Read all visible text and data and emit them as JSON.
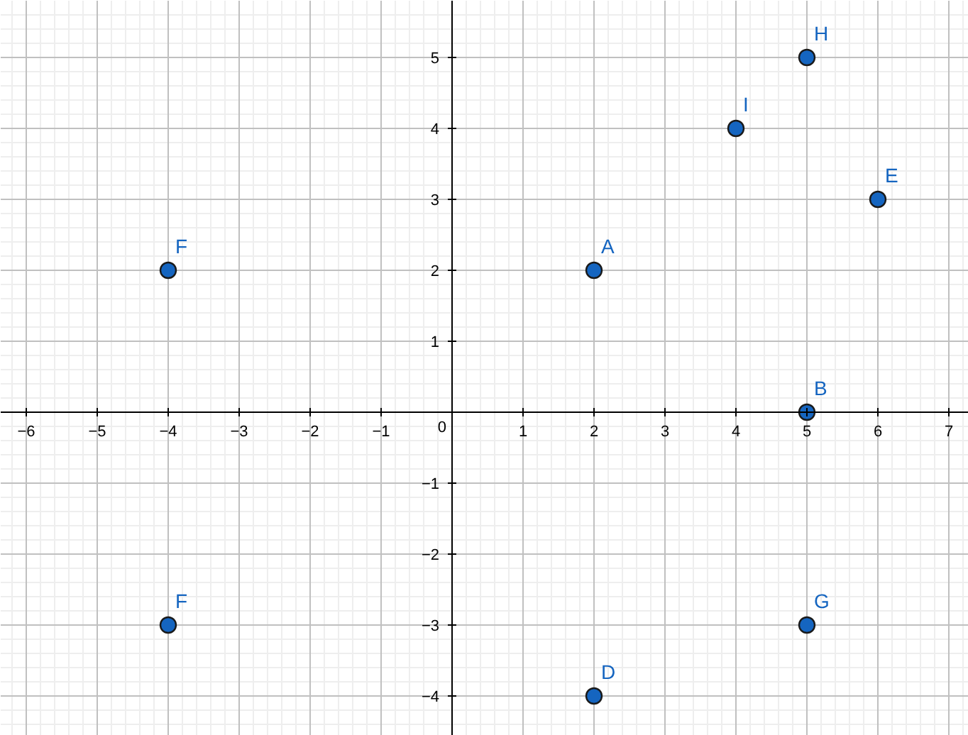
{
  "chart_data": {
    "type": "scatter",
    "x": [
      2,
      5,
      2,
      6,
      -4,
      -4,
      5,
      5,
      4
    ],
    "values": [
      2,
      0,
      -4,
      3,
      2,
      -3,
      -3,
      5,
      4
    ],
    "color": "#1565c0",
    "marker": "circle",
    "grid": true,
    "xlim": [
      -6.36,
      7.28
    ],
    "ylim": [
      -4.56,
      5.8
    ],
    "xticks": [
      {
        "value": -6,
        "label": "−6"
      },
      {
        "value": -5,
        "label": "−5"
      },
      {
        "value": -4,
        "label": "−4"
      },
      {
        "value": -3,
        "label": "−3"
      },
      {
        "value": -2,
        "label": "−2"
      },
      {
        "value": -1,
        "label": "−1"
      },
      0,
      1,
      2,
      3,
      4,
      5,
      6,
      7
    ],
    "yticks": [
      {
        "value": -4,
        "label": "−4"
      },
      {
        "value": -3,
        "label": "−3"
      },
      {
        "value": -2,
        "label": "−2"
      },
      {
        "value": -1,
        "label": "−1"
      },
      1,
      2,
      3,
      4,
      5
    ],
    "annotations": [
      {
        "text": "A",
        "x": 2,
        "y": 2
      },
      {
        "text": "B",
        "x": 5,
        "y": 0
      },
      {
        "text": "D",
        "x": 2,
        "y": -4
      },
      {
        "text": "E",
        "x": 6,
        "y": 3
      },
      {
        "text": "F",
        "x": -4,
        "y": 2
      },
      {
        "text": "F",
        "x": -4,
        "y": -3
      },
      {
        "text": "G",
        "x": 5,
        "y": -3
      },
      {
        "text": "H",
        "x": 5,
        "y": 5
      },
      {
        "text": "I",
        "x": 4,
        "y": 4
      }
    ]
  }
}
